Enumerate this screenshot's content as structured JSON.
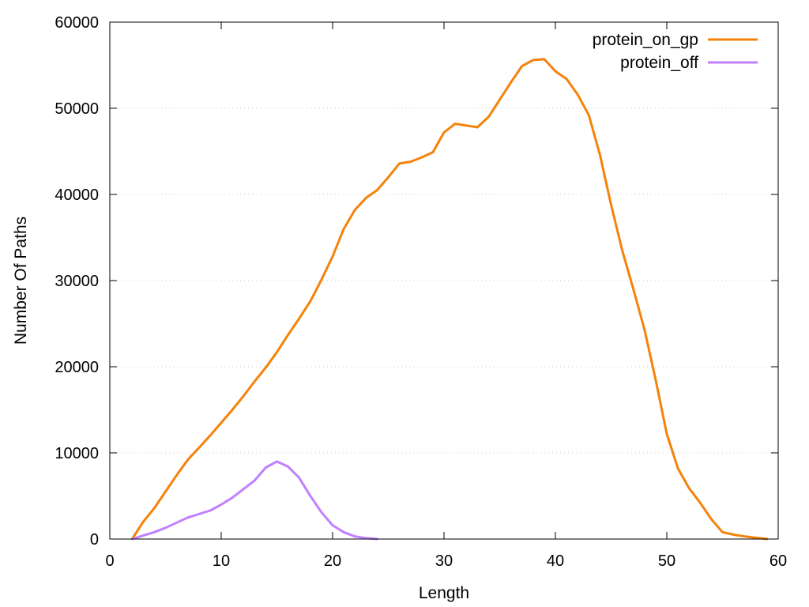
{
  "chart_data": {
    "type": "line",
    "title": "",
    "xlabel": "Length",
    "ylabel": "Number Of Paths",
    "xlim": [
      0,
      60
    ],
    "ylim": [
      0,
      60000
    ],
    "x_ticks": [
      0,
      10,
      20,
      30,
      40,
      50,
      60
    ],
    "y_ticks": [
      0,
      10000,
      20000,
      30000,
      40000,
      50000,
      60000
    ],
    "grid": "horizontal dotted",
    "legend_position": "top-right",
    "series": [
      {
        "name": "protein_on_gp",
        "color": "#f5820a",
        "x": [
          2,
          3,
          4,
          5,
          6,
          7,
          8,
          9,
          10,
          11,
          12,
          13,
          14,
          15,
          16,
          17,
          18,
          19,
          20,
          21,
          22,
          23,
          24,
          25,
          26,
          27,
          28,
          29,
          30,
          31,
          32,
          33,
          34,
          35,
          36,
          37,
          38,
          39,
          40,
          41,
          42,
          43,
          44,
          45,
          46,
          47,
          48,
          49,
          50,
          51,
          52,
          53,
          54,
          55,
          56,
          57,
          58,
          59
        ],
        "y": [
          0,
          2000,
          3600,
          5500,
          7400,
          9200,
          10600,
          12000,
          13500,
          15000,
          16600,
          18300,
          19900,
          21700,
          23700,
          25600,
          27600,
          30100,
          32800,
          36000,
          38200,
          39600,
          40500,
          42000,
          43600,
          43800,
          44300,
          44900,
          47200,
          48200,
          48000,
          47800,
          49000,
          51000,
          53000,
          54900,
          55600,
          55700,
          54300,
          53400,
          51600,
          49200,
          44600,
          38800,
          33500,
          29000,
          24300,
          18500,
          12200,
          8200,
          5900,
          4200,
          2300,
          800,
          500,
          300,
          150,
          0
        ]
      },
      {
        "name": "protein_off",
        "color": "#c080ff",
        "x": [
          2,
          3,
          4,
          5,
          6,
          7,
          8,
          9,
          10,
          11,
          12,
          13,
          14,
          15,
          16,
          17,
          18,
          19,
          20,
          21,
          22,
          23,
          24
        ],
        "y": [
          0,
          400,
          800,
          1300,
          1900,
          2500,
          2900,
          3300,
          4000,
          4800,
          5800,
          6800,
          8300,
          9000,
          8400,
          7100,
          5000,
          3100,
          1600,
          800,
          300,
          100,
          0
        ]
      }
    ]
  }
}
